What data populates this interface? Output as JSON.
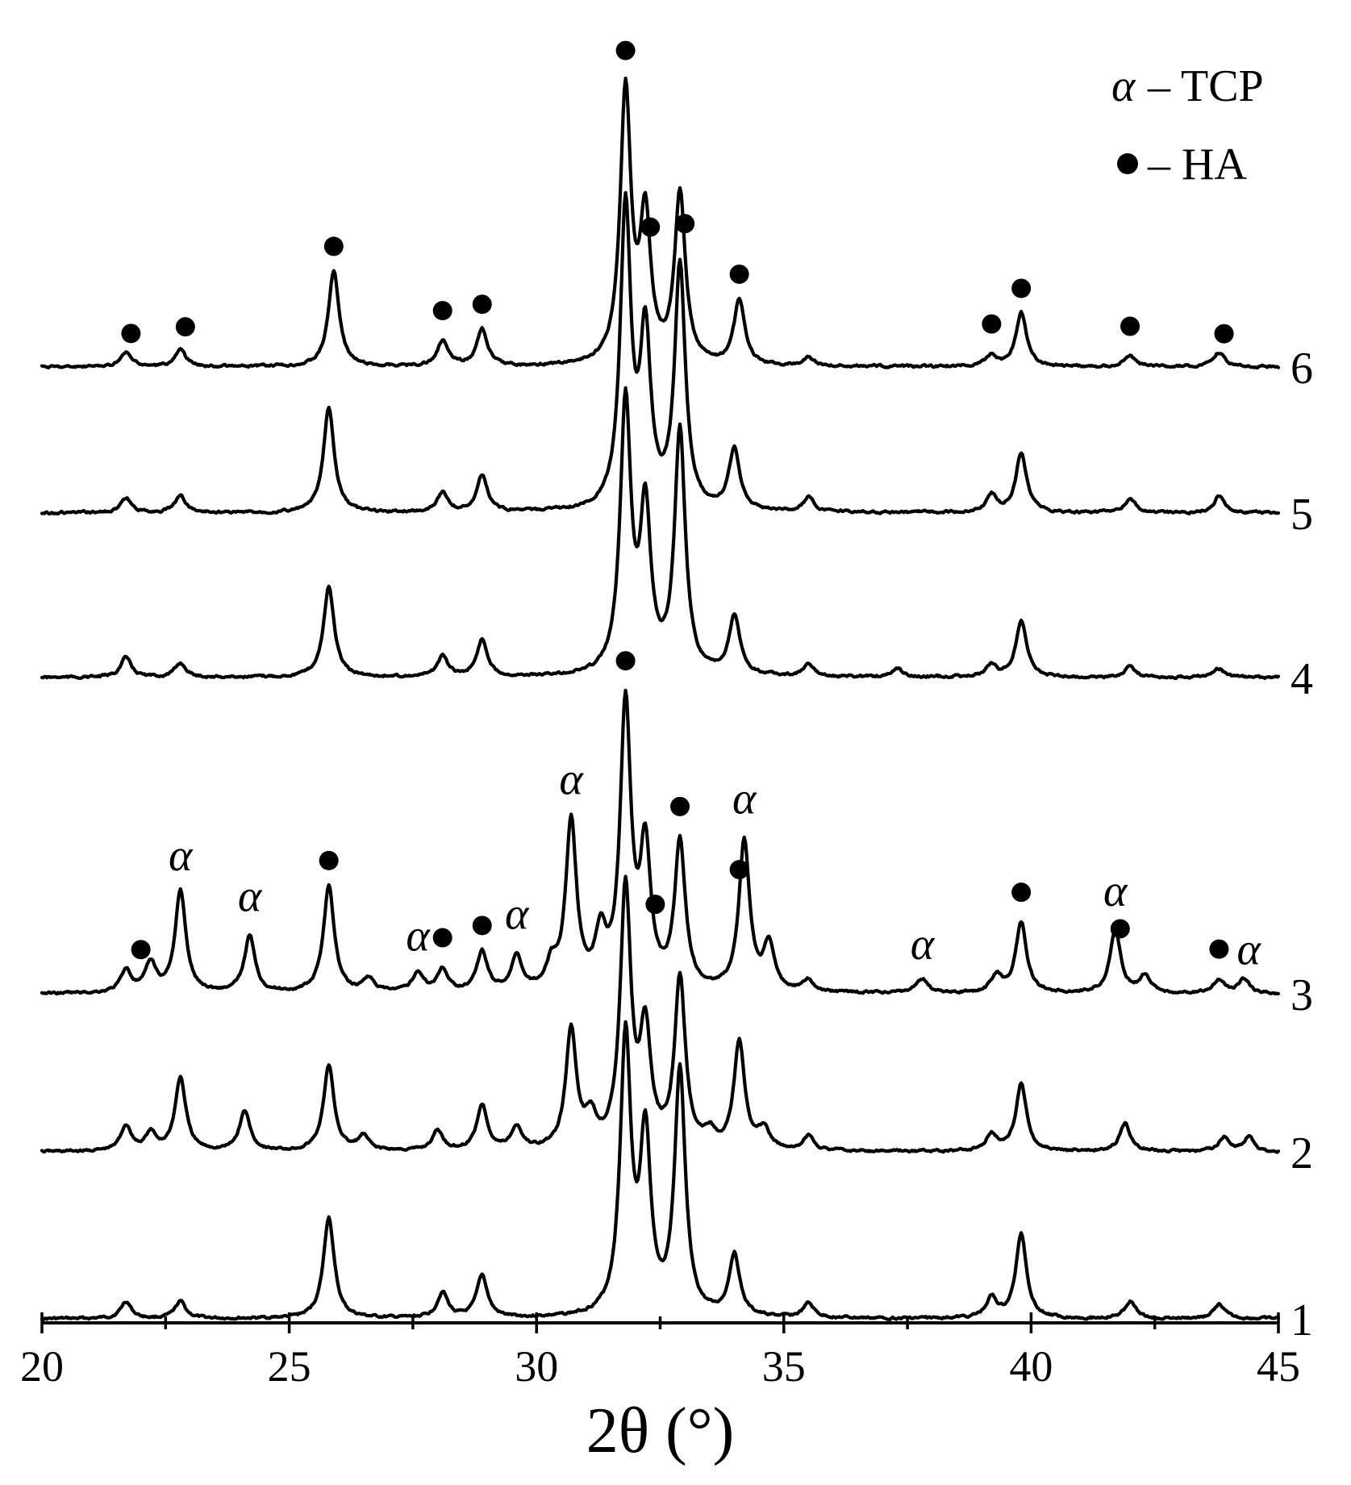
{
  "chart_data": {
    "type": "line",
    "xlabel": "2θ (°)",
    "ylabel": "",
    "xlim": [
      20,
      45
    ],
    "x_ticks_major": [
      20,
      25,
      30,
      35,
      40,
      45
    ],
    "x_ticks_minor_step": 2.5,
    "legend": {
      "placement": "top-right",
      "entries": [
        {
          "symbol": "α",
          "label": "– TCP"
        },
        {
          "symbol": "●",
          "label": "– HA"
        }
      ]
    },
    "series": [
      {
        "name": "1",
        "peaks": [
          [
            21.7,
            6
          ],
          [
            22.8,
            6
          ],
          [
            25.8,
            36
          ],
          [
            28.1,
            9
          ],
          [
            28.9,
            15
          ],
          [
            31.8,
            98
          ],
          [
            32.2,
            62
          ],
          [
            32.9,
            86
          ],
          [
            34.0,
            22
          ],
          [
            35.5,
            5
          ],
          [
            39.2,
            7
          ],
          [
            39.8,
            30
          ],
          [
            42.0,
            6
          ],
          [
            43.8,
            5
          ]
        ]
      },
      {
        "name": "2",
        "peaks": [
          [
            21.7,
            9
          ],
          [
            22.2,
            6
          ],
          [
            22.8,
            26
          ],
          [
            24.1,
            14
          ],
          [
            25.8,
            30
          ],
          [
            26.5,
            5
          ],
          [
            28.0,
            7
          ],
          [
            28.9,
            16
          ],
          [
            29.6,
            8
          ],
          [
            30.7,
            42
          ],
          [
            31.1,
            10
          ],
          [
            31.8,
            92
          ],
          [
            32.2,
            40
          ],
          [
            32.9,
            60
          ],
          [
            33.5,
            5
          ],
          [
            34.1,
            38
          ],
          [
            34.6,
            7
          ],
          [
            35.5,
            5
          ],
          [
            39.2,
            6
          ],
          [
            39.8,
            24
          ],
          [
            41.9,
            10
          ],
          [
            43.9,
            5
          ],
          [
            44.4,
            5
          ]
        ]
      },
      {
        "name": "3",
        "peaks": [
          [
            21.7,
            8
          ],
          [
            22.2,
            10
          ],
          [
            22.8,
            36
          ],
          [
            24.2,
            20
          ],
          [
            25.8,
            38
          ],
          [
            26.6,
            5
          ],
          [
            27.6,
            7
          ],
          [
            28.1,
            8
          ],
          [
            28.9,
            14
          ],
          [
            29.6,
            12
          ],
          [
            30.3,
            8
          ],
          [
            30.7,
            60
          ],
          [
            31.3,
            18
          ],
          [
            31.8,
            100
          ],
          [
            32.2,
            48
          ],
          [
            32.9,
            52
          ],
          [
            34.2,
            53
          ],
          [
            34.7,
            16
          ],
          [
            35.5,
            4
          ],
          [
            37.8,
            5
          ],
          [
            39.3,
            6
          ],
          [
            39.8,
            25
          ],
          [
            41.7,
            22
          ],
          [
            42.3,
            6
          ],
          [
            43.8,
            5
          ],
          [
            44.3,
            5
          ]
        ]
      },
      {
        "name": "4",
        "peaks": [
          [
            21.7,
            7
          ],
          [
            22.8,
            5
          ],
          [
            25.8,
            32
          ],
          [
            28.1,
            7
          ],
          [
            28.9,
            13
          ],
          [
            31.8,
            96
          ],
          [
            32.2,
            57
          ],
          [
            32.9,
            86
          ],
          [
            34.0,
            21
          ],
          [
            35.5,
            4
          ],
          [
            37.3,
            3
          ],
          [
            39.2,
            4
          ],
          [
            39.8,
            20
          ],
          [
            42.0,
            4
          ],
          [
            43.8,
            3
          ]
        ]
      },
      {
        "name": "5",
        "peaks": [
          [
            21.7,
            5
          ],
          [
            22.8,
            6
          ],
          [
            25.8,
            37
          ],
          [
            28.1,
            7
          ],
          [
            28.9,
            13
          ],
          [
            31.8,
            106
          ],
          [
            32.2,
            60
          ],
          [
            32.9,
            86
          ],
          [
            34.0,
            22
          ],
          [
            35.5,
            5
          ],
          [
            39.2,
            6
          ],
          [
            39.8,
            21
          ],
          [
            42.0,
            5
          ],
          [
            43.8,
            6
          ]
        ]
      },
      {
        "name": "6",
        "peaks": [
          [
            21.7,
            5
          ],
          [
            22.8,
            6
          ],
          [
            25.9,
            34
          ],
          [
            28.1,
            9
          ],
          [
            28.9,
            13
          ],
          [
            31.8,
            96
          ],
          [
            32.2,
            51
          ],
          [
            32.9,
            60
          ],
          [
            34.1,
            23
          ],
          [
            35.5,
            3
          ],
          [
            39.2,
            4
          ],
          [
            39.8,
            19
          ],
          [
            42.0,
            4
          ],
          [
            43.8,
            5
          ]
        ]
      }
    ],
    "markers": [
      {
        "symbol": "α",
        "trace": "3",
        "x": 22.8
      },
      {
        "symbol": "α",
        "trace": "3",
        "x": 24.2
      },
      {
        "symbol": "α",
        "trace": "3",
        "x": 27.6
      },
      {
        "symbol": "α",
        "trace": "3",
        "x": 29.6
      },
      {
        "symbol": "α",
        "trace": "3",
        "x": 30.7
      },
      {
        "symbol": "α",
        "trace": "3",
        "x": 34.2
      },
      {
        "symbol": "α",
        "trace": "3",
        "x": 37.8
      },
      {
        "symbol": "α",
        "trace": "3",
        "x": 41.7
      },
      {
        "symbol": "α",
        "trace": "3",
        "x": 44.4
      },
      {
        "symbol": "●",
        "trace": "3",
        "x": 22.0
      },
      {
        "symbol": "●",
        "trace": "3",
        "x": 25.8
      },
      {
        "symbol": "●",
        "trace": "3",
        "x": 28.1
      },
      {
        "symbol": "●",
        "trace": "3",
        "x": 28.9
      },
      {
        "symbol": "●",
        "trace": "3",
        "x": 31.8
      },
      {
        "symbol": "●",
        "trace": "3",
        "x": 32.4
      },
      {
        "symbol": "●",
        "trace": "3",
        "x": 32.9
      },
      {
        "symbol": "●",
        "trace": "3",
        "x": 34.1
      },
      {
        "symbol": "●",
        "trace": "3",
        "x": 39.8
      },
      {
        "symbol": "●",
        "trace": "3",
        "x": 41.8
      },
      {
        "symbol": "●",
        "trace": "3",
        "x": 43.8
      },
      {
        "symbol": "●",
        "trace": "6",
        "x": 21.8
      },
      {
        "symbol": "●",
        "trace": "6",
        "x": 22.9
      },
      {
        "symbol": "●",
        "trace": "6",
        "x": 25.9
      },
      {
        "symbol": "●",
        "trace": "6",
        "x": 28.1
      },
      {
        "symbol": "●",
        "trace": "6",
        "x": 28.9
      },
      {
        "symbol": "●",
        "trace": "6",
        "x": 31.8
      },
      {
        "symbol": "●",
        "trace": "6",
        "x": 32.3
      },
      {
        "symbol": "●",
        "trace": "6",
        "x": 33.0
      },
      {
        "symbol": "●",
        "trace": "6",
        "x": 34.1
      },
      {
        "symbol": "●",
        "trace": "6",
        "x": 39.2
      },
      {
        "symbol": "●",
        "trace": "6",
        "x": 39.8
      },
      {
        "symbol": "●",
        "trace": "6",
        "x": 42.0
      },
      {
        "symbol": "●",
        "trace": "6",
        "x": 43.9
      }
    ]
  }
}
